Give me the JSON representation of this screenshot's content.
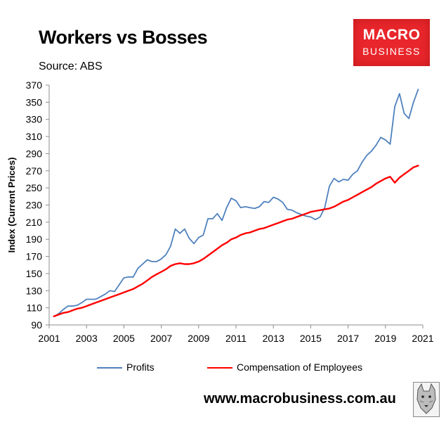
{
  "header": {
    "title": "Workers vs Bosses",
    "source": "Source: ABS"
  },
  "logo": {
    "line1": "MACRO",
    "line2": "BUSINESS"
  },
  "footer": {
    "url": "www.macrobusiness.com.au"
  },
  "colors": {
    "profits": "#4f81bd",
    "compensation": "#ff0000",
    "logo_bg": "#e8262b"
  },
  "chart_data": {
    "type": "line",
    "ylabel": "Index (Current Prices)",
    "xlabel": "",
    "ylim": [
      90,
      370
    ],
    "xlim": [
      2001,
      2021
    ],
    "y_ticks": [
      90,
      110,
      130,
      150,
      170,
      190,
      210,
      230,
      250,
      270,
      290,
      310,
      330,
      350,
      370
    ],
    "x_ticks": [
      2001,
      2003,
      2005,
      2007,
      2009,
      2011,
      2013,
      2015,
      2017,
      2019,
      2021
    ],
    "grid": false,
    "legend": "bottom",
    "series": [
      {
        "name": "Profits",
        "color": "#4f81bd",
        "x": [
          2001.25,
          2001.5,
          2001.75,
          2002.0,
          2002.25,
          2002.5,
          2002.75,
          2003.0,
          2003.25,
          2003.5,
          2003.75,
          2004.0,
          2004.25,
          2004.5,
          2004.75,
          2005.0,
          2005.25,
          2005.5,
          2005.75,
          2006.0,
          2006.25,
          2006.5,
          2006.75,
          2007.0,
          2007.25,
          2007.5,
          2007.75,
          2008.0,
          2008.25,
          2008.5,
          2008.75,
          2009.0,
          2009.25,
          2009.5,
          2009.75,
          2010.0,
          2010.25,
          2010.5,
          2010.75,
          2011.0,
          2011.25,
          2011.5,
          2011.75,
          2012.0,
          2012.25,
          2012.5,
          2012.75,
          2013.0,
          2013.25,
          2013.5,
          2013.75,
          2014.0,
          2014.25,
          2014.5,
          2014.75,
          2015.0,
          2015.25,
          2015.5,
          2015.75,
          2016.0,
          2016.25,
          2016.5,
          2016.75,
          2017.0,
          2017.25,
          2017.5,
          2017.75,
          2018.0,
          2018.25,
          2018.5,
          2018.75,
          2019.0,
          2019.25,
          2019.5,
          2019.75,
          2020.0,
          2020.25,
          2020.5,
          2020.75
        ],
        "values": [
          100,
          103,
          108,
          112,
          112,
          113,
          116,
          120,
          120,
          120,
          123,
          126,
          130,
          129,
          137,
          145,
          146,
          146,
          156,
          161,
          166,
          164,
          164,
          167,
          172,
          182,
          202,
          197,
          202,
          191,
          185,
          192,
          195,
          214,
          214,
          220,
          212,
          227,
          238,
          235,
          227,
          228,
          227,
          226,
          228,
          234,
          233,
          239,
          237,
          233,
          225,
          224,
          221,
          219,
          217,
          216,
          213,
          216,
          227,
          252,
          261,
          257,
          260,
          259,
          266,
          270,
          280,
          288,
          293,
          300,
          309,
          306,
          301,
          345,
          360,
          337,
          331,
          350,
          365
        ]
      },
      {
        "name": "Compensation of Employees",
        "color": "#ff0000",
        "x": [
          2001.25,
          2001.5,
          2001.75,
          2002.0,
          2002.25,
          2002.5,
          2002.75,
          2003.0,
          2003.25,
          2003.5,
          2003.75,
          2004.0,
          2004.25,
          2004.5,
          2004.75,
          2005.0,
          2005.25,
          2005.5,
          2005.75,
          2006.0,
          2006.25,
          2006.5,
          2006.75,
          2007.0,
          2007.25,
          2007.5,
          2007.75,
          2008.0,
          2008.25,
          2008.5,
          2008.75,
          2009.0,
          2009.25,
          2009.5,
          2009.75,
          2010.0,
          2010.25,
          2010.5,
          2010.75,
          2011.0,
          2011.25,
          2011.5,
          2011.75,
          2012.0,
          2012.25,
          2012.5,
          2012.75,
          2013.0,
          2013.25,
          2013.5,
          2013.75,
          2014.0,
          2014.25,
          2014.5,
          2014.75,
          2015.0,
          2015.25,
          2015.5,
          2015.75,
          2016.0,
          2016.25,
          2016.5,
          2016.75,
          2017.0,
          2017.25,
          2017.5,
          2017.75,
          2018.0,
          2018.25,
          2018.5,
          2018.75,
          2019.0,
          2019.25,
          2019.5,
          2019.75,
          2020.0,
          2020.25,
          2020.5,
          2020.75
        ],
        "values": [
          100,
          102,
          104,
          105,
          107,
          109,
          110,
          112,
          114,
          116,
          118,
          120,
          122,
          124,
          126,
          128,
          130,
          132,
          135,
          138,
          142,
          146,
          149,
          152,
          155,
          159,
          161,
          162,
          161,
          161,
          162,
          164,
          167,
          171,
          175,
          179,
          183,
          186,
          190,
          192,
          195,
          197,
          198,
          200,
          202,
          203,
          205,
          207,
          209,
          211,
          213,
          214,
          216,
          218,
          220,
          222,
          223,
          224,
          225,
          226,
          228,
          231,
          234,
          236,
          239,
          242,
          245,
          248,
          251,
          255,
          258,
          261,
          263,
          256,
          262,
          266,
          270,
          274,
          276
        ]
      }
    ]
  }
}
